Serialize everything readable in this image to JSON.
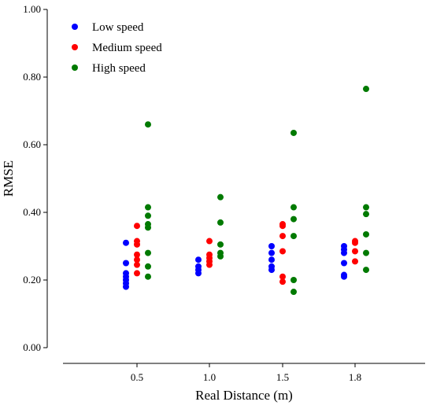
{
  "chart_data": {
    "type": "scatter",
    "title": "",
    "xlabel": "Real Distance (m)",
    "ylabel": "RMSE",
    "categories": [
      "0.5",
      "1.0",
      "1.5",
      "1.8"
    ],
    "ylim": [
      0,
      1.0
    ],
    "yticks": [
      "0.00",
      "0.20",
      "0.40",
      "0.60",
      "0.80",
      "1.00"
    ],
    "grid": false,
    "legend_position": "top-left",
    "series": [
      {
        "name": "Low speed",
        "color": "#0000ff",
        "points": [
          [
            0,
            0.31
          ],
          [
            0,
            0.25
          ],
          [
            0,
            0.22
          ],
          [
            0,
            0.21
          ],
          [
            0,
            0.2
          ],
          [
            0,
            0.19
          ],
          [
            0,
            0.18
          ],
          [
            1,
            0.26
          ],
          [
            1,
            0.24
          ],
          [
            1,
            0.23
          ],
          [
            1,
            0.22
          ],
          [
            2,
            0.3
          ],
          [
            2,
            0.28
          ],
          [
            2,
            0.26
          ],
          [
            2,
            0.24
          ],
          [
            2,
            0.23
          ],
          [
            3,
            0.3
          ],
          [
            3,
            0.29
          ],
          [
            3,
            0.28
          ],
          [
            3,
            0.25
          ],
          [
            3,
            0.215
          ],
          [
            3,
            0.21
          ]
        ]
      },
      {
        "name": "Medium speed",
        "color": "#ff0000",
        "points": [
          [
            0,
            0.36
          ],
          [
            0,
            0.315
          ],
          [
            0,
            0.305
          ],
          [
            0,
            0.275
          ],
          [
            0,
            0.26
          ],
          [
            0,
            0.245
          ],
          [
            0,
            0.22
          ],
          [
            1,
            0.315
          ],
          [
            1,
            0.275
          ],
          [
            1,
            0.265
          ],
          [
            1,
            0.255
          ],
          [
            1,
            0.245
          ],
          [
            2,
            0.365
          ],
          [
            2,
            0.36
          ],
          [
            2,
            0.33
          ],
          [
            2,
            0.285
          ],
          [
            2,
            0.21
          ],
          [
            2,
            0.195
          ],
          [
            3,
            0.315
          ],
          [
            3,
            0.31
          ],
          [
            3,
            0.285
          ],
          [
            3,
            0.255
          ]
        ]
      },
      {
        "name": "High speed",
        "color": "#007a00",
        "points": [
          [
            0,
            0.66
          ],
          [
            0,
            0.415
          ],
          [
            0,
            0.39
          ],
          [
            0,
            0.365
          ],
          [
            0,
            0.355
          ],
          [
            0,
            0.28
          ],
          [
            0,
            0.24
          ],
          [
            0,
            0.21
          ],
          [
            1,
            0.445
          ],
          [
            1,
            0.37
          ],
          [
            1,
            0.305
          ],
          [
            1,
            0.28
          ],
          [
            1,
            0.27
          ],
          [
            2,
            0.635
          ],
          [
            2,
            0.415
          ],
          [
            2,
            0.38
          ],
          [
            2,
            0.33
          ],
          [
            2,
            0.2
          ],
          [
            2,
            0.165
          ],
          [
            3,
            0.765
          ],
          [
            3,
            0.415
          ],
          [
            3,
            0.395
          ],
          [
            3,
            0.335
          ],
          [
            3,
            0.28
          ],
          [
            3,
            0.23
          ]
        ]
      }
    ]
  }
}
